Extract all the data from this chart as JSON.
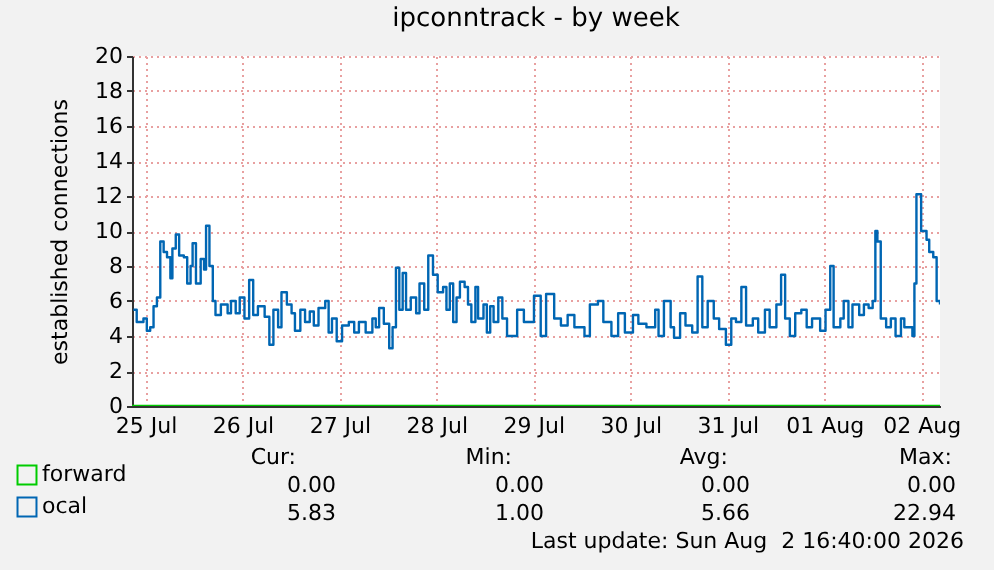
{
  "chart_data": {
    "type": "step",
    "title": "ipconntrack - by week",
    "ylabel": "established connections",
    "xlim": [
      "2026-07-25T08:40",
      "2026-08-02T16:40"
    ],
    "xticks": [
      {
        "value": "2026-07-25T12:00",
        "label": "25 Jul"
      },
      {
        "value": "2026-07-26T12:00",
        "label": "26 Jul"
      },
      {
        "value": "2026-07-27T12:00",
        "label": "27 Jul"
      },
      {
        "value": "2026-07-28T12:00",
        "label": "28 Jul"
      },
      {
        "value": "2026-07-29T12:00",
        "label": "29 Jul"
      },
      {
        "value": "2026-07-30T12:00",
        "label": "30 Jul"
      },
      {
        "value": "2026-07-31T12:00",
        "label": "31 Jul"
      },
      {
        "value": "2026-08-01T12:00",
        "label": "01 Aug"
      },
      {
        "value": "2026-08-02T12:00",
        "label": "02 Aug"
      }
    ],
    "ylim": [
      0,
      20
    ],
    "yticks": [
      0,
      2,
      4,
      6,
      8,
      10,
      12,
      14,
      16,
      18,
      20
    ],
    "grid": true,
    "legend": "bottom left",
    "series": [
      {
        "name": "forward",
        "color": "#00cc00",
        "x": [
          "2026-07-25T08:40",
          "2026-08-02T16:40"
        ],
        "values": [
          0,
          0
        ]
      },
      {
        "name": "ocal",
        "color": "#0066b3",
        "x": [
          "2026-07-25T09:00",
          "2026-07-25T09:50",
          "2026-07-25T11:30",
          "2026-07-25T12:20",
          "2026-07-25T13:10",
          "2026-07-25T14:00",
          "2026-07-25T14:50",
          "2026-07-25T15:40",
          "2026-07-25T16:30",
          "2026-07-25T17:20",
          "2026-07-25T18:10",
          "2026-07-25T18:40",
          "2026-07-25T19:30",
          "2026-07-25T20:20",
          "2026-07-25T21:30",
          "2026-07-25T22:20",
          "2026-07-25T23:10",
          "2026-07-25T23:40",
          "2026-07-26T00:30",
          "2026-07-26T01:40",
          "2026-07-26T02:30",
          "2026-07-26T03:00",
          "2026-07-26T03:50",
          "2026-07-26T04:40",
          "2026-07-26T05:20",
          "2026-07-26T06:40",
          "2026-07-26T08:20",
          "2026-07-26T09:10",
          "2026-07-26T10:20",
          "2026-07-26T11:20",
          "2026-07-26T12:30",
          "2026-07-26T13:40",
          "2026-07-26T14:40",
          "2026-07-26T15:50",
          "2026-07-26T17:30",
          "2026-07-26T18:40",
          "2026-07-26T19:40",
          "2026-07-26T20:50",
          "2026-07-26T21:40",
          "2026-07-26T23:00",
          "2026-07-27T00:10",
          "2026-07-27T01:00",
          "2026-07-27T02:20",
          "2026-07-27T03:30",
          "2026-07-27T04:40",
          "2026-07-27T05:40",
          "2026-07-27T06:50",
          "2026-07-27T08:30",
          "2026-07-27T09:20",
          "2026-07-27T10:10",
          "2026-07-27T11:20",
          "2026-07-27T12:40",
          "2026-07-27T14:20",
          "2026-07-27T15:40",
          "2026-07-27T16:50",
          "2026-07-27T18:30",
          "2026-07-27T20:10",
          "2026-07-27T21:00",
          "2026-07-27T21:50",
          "2026-07-27T23:00",
          "2026-07-28T00:20",
          "2026-07-28T01:10",
          "2026-07-28T02:00",
          "2026-07-28T02:50",
          "2026-07-28T03:40",
          "2026-07-28T04:30",
          "2026-07-28T05:40",
          "2026-07-28T07:00",
          "2026-07-28T07:50",
          "2026-07-28T09:00",
          "2026-07-28T10:00",
          "2026-07-28T11:10",
          "2026-07-28T12:20",
          "2026-07-28T13:40",
          "2026-07-28T14:30",
          "2026-07-28T15:20",
          "2026-07-28T16:10",
          "2026-07-28T17:00",
          "2026-07-28T17:50",
          "2026-07-28T19:00",
          "2026-07-28T19:50",
          "2026-07-28T20:40",
          "2026-07-28T21:40",
          "2026-07-28T22:20",
          "2026-07-28T23:40",
          "2026-07-29T00:30",
          "2026-07-29T01:20",
          "2026-07-29T02:10",
          "2026-07-29T03:20",
          "2026-07-29T04:20",
          "2026-07-29T05:30",
          "2026-07-29T08:00",
          "2026-07-29T09:40",
          "2026-07-29T12:10",
          "2026-07-29T13:50",
          "2026-07-29T15:10",
          "2026-07-29T17:10",
          "2026-07-29T18:50",
          "2026-07-29T20:30",
          "2026-07-29T22:10",
          "2026-07-30T00:40",
          "2026-07-30T02:00",
          "2026-07-30T04:00",
          "2026-07-30T05:20",
          "2026-07-30T07:20",
          "2026-07-30T09:00",
          "2026-07-30T10:40",
          "2026-07-30T12:40",
          "2026-07-30T14:00",
          "2026-07-30T16:00",
          "2026-07-30T18:10",
          "2026-07-30T19:00",
          "2026-07-30T20:20",
          "2026-07-30T22:00",
          "2026-07-30T22:50",
          "2026-07-31T00:20",
          "2026-07-31T01:40",
          "2026-07-31T03:20",
          "2026-07-31T04:40",
          "2026-07-31T05:50",
          "2026-07-31T07:10",
          "2026-07-31T08:40",
          "2026-07-31T10:00",
          "2026-07-31T11:40",
          "2026-07-31T13:00",
          "2026-07-31T14:10",
          "2026-07-31T15:30",
          "2026-07-31T16:40",
          "2026-07-31T18:20",
          "2026-07-31T19:40",
          "2026-07-31T21:20",
          "2026-07-31T22:30",
          "2026-08-01T00:10",
          "2026-08-01T01:20",
          "2026-08-01T02:20",
          "2026-08-01T03:30",
          "2026-08-01T04:50",
          "2026-08-01T06:20",
          "2026-08-01T07:40",
          "2026-08-01T09:00",
          "2026-08-01T11:00",
          "2026-08-01T12:20",
          "2026-08-01T13:30",
          "2026-08-01T14:20",
          "2026-08-01T16:00",
          "2026-08-01T16:50",
          "2026-08-01T18:00",
          "2026-08-01T19:00",
          "2026-08-01T20:40",
          "2026-08-01T21:50",
          "2026-08-01T23:00",
          "2026-08-02T00:00",
          "2026-08-02T00:40",
          "2026-08-02T01:10",
          "2026-08-02T02:00",
          "2026-08-02T03:20",
          "2026-08-02T04:30",
          "2026-08-02T05:40",
          "2026-08-02T07:00",
          "2026-08-02T07:50",
          "2026-08-02T09:00",
          "2026-08-02T09:50",
          "2026-08-02T10:20",
          "2026-08-02T10:50",
          "2026-08-02T12:00",
          "2026-08-02T13:20",
          "2026-08-02T14:00",
          "2026-08-02T15:00",
          "2026-08-02T15:50",
          "2026-08-02T16:40"
        ],
        "values": [
          5.5,
          4.8,
          5.0,
          4.3,
          4.5,
          5.7,
          6.2,
          9.4,
          8.8,
          8.5,
          7.3,
          9.0,
          9.8,
          8.6,
          8.5,
          7.0,
          8.0,
          9.3,
          7.0,
          8.4,
          7.8,
          10.3,
          8.0,
          6.0,
          5.2,
          5.8,
          5.3,
          6.0,
          5.3,
          6.2,
          5.0,
          7.2,
          5.2,
          5.7,
          5.1,
          3.5,
          5.5,
          4.5,
          6.5,
          5.8,
          5.3,
          4.3,
          5.5,
          4.8,
          5.4,
          4.6,
          5.6,
          6.0,
          4.2,
          5.0,
          3.7,
          4.6,
          4.8,
          4.2,
          4.8,
          4.2,
          5.0,
          4.5,
          5.6,
          4.7,
          3.3,
          4.5,
          7.9,
          5.5,
          7.6,
          5.5,
          6.2,
          5.3,
          7.0,
          5.5,
          8.6,
          7.5,
          6.5,
          6.8,
          5.5,
          7.0,
          4.8,
          6.2,
          7.1,
          6.8,
          5.8,
          4.8,
          6.8,
          5.0,
          5.8,
          4.2,
          5.7,
          4.8,
          6.2,
          5.0,
          4.0,
          5.5,
          4.8,
          6.3,
          4.0,
          6.4,
          5.0,
          4.6,
          5.2,
          4.5,
          4.0,
          5.8,
          6.0,
          4.8,
          4.0,
          5.3,
          4.2,
          5.2,
          4.7,
          4.5,
          5.5,
          4.0,
          6.0,
          4.5,
          3.9,
          5.3,
          4.6,
          4.2,
          7.4,
          4.5,
          6.0,
          5.0,
          4.4,
          3.5,
          5.0,
          4.8,
          6.8,
          4.6,
          5.0,
          4.2,
          5.5,
          4.5,
          5.8,
          7.5,
          5.0,
          4.0,
          5.3,
          5.5,
          4.5,
          5.0,
          4.3,
          5.5,
          8.0,
          4.5,
          5.0,
          6.0,
          4.5,
          5.8,
          5.2,
          5.8,
          5.6,
          6.0,
          10.0,
          9.4,
          5.0,
          4.5,
          5.0,
          4.0,
          5.0,
          4.5,
          4.5,
          4.0,
          7.0,
          12.1,
          10.0,
          9.5,
          8.8,
          8.5,
          6.0,
          5.8
        ]
      }
    ],
    "annotations": [
      "Cur:",
      "Min:",
      "Avg:",
      "Max:",
      "0.00",
      "0.00",
      "0.00",
      "0.00",
      "5.83",
      "1.00",
      "5.66",
      "22.94",
      "Last update: Sun Aug  2 16:40:00 2026"
    ]
  }
}
